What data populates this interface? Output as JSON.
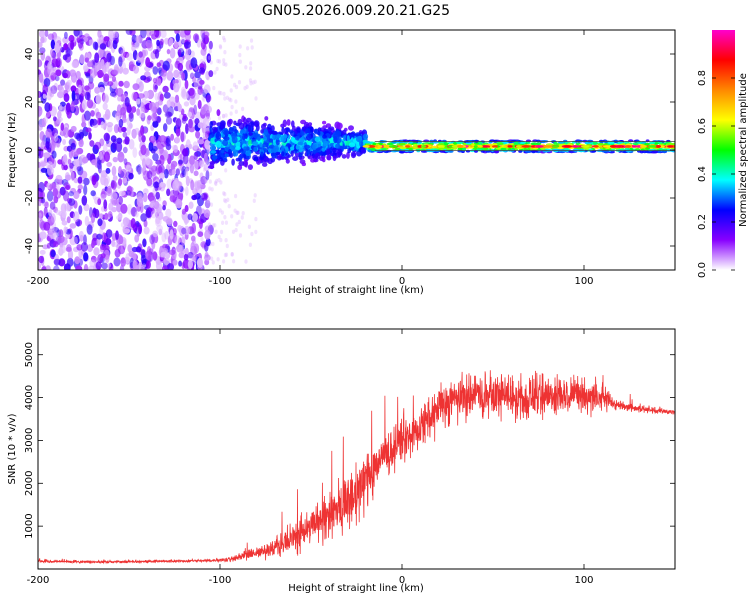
{
  "figure_title": "GN05.2026.009.20.21.G25",
  "colors": {
    "snr_line": "#ee3333",
    "band_line": "#444444",
    "frame": "#000000"
  },
  "chart_data": [
    {
      "type": "heatmap",
      "title": "GN05.2026.009.20.21.G25",
      "xlabel": "Height of straight line (km)",
      "ylabel": "Frequency (Hz)",
      "xlim": [
        -200,
        150
      ],
      "ylim": [
        -50,
        50
      ],
      "xticks": [
        -200,
        -100,
        0,
        100
      ],
      "yticks": [
        -40,
        -20,
        0,
        20,
        40
      ],
      "colorbar": {
        "label": "Normalized spectral amplitude",
        "range": [
          0,
          1
        ],
        "ticks": [
          "0.0",
          "0.2",
          "0.4",
          "0.6",
          "0.8"
        ],
        "colormap": [
          "#ffffff",
          "#8800ff",
          "#0000ff",
          "#00ffff",
          "#00ff00",
          "#ffff00",
          "#ff8800",
          "#ff0000",
          "#ff00cc"
        ]
      },
      "regions": [
        {
          "name": "noise",
          "x_range": [
            -200,
            -105
          ],
          "freq_range": [
            -50,
            50
          ],
          "amplitude": [
            0.0,
            0.2
          ]
        },
        {
          "name": "transition",
          "x_range": [
            -105,
            -20
          ],
          "freq_range": [
            -15,
            15
          ],
          "center_freq": 3,
          "amplitude": [
            0.1,
            0.4
          ]
        },
        {
          "name": "carrier",
          "x_range": [
            -20,
            150
          ],
          "center_freq": 1.5,
          "half_width": 1.5,
          "amplitude": [
            0.5,
            1.0
          ]
        }
      ],
      "band_lines": [
        {
          "x_range": [
            -15,
            150
          ],
          "freq": 3.5
        },
        {
          "x_range": [
            -15,
            150
          ],
          "freq": -0.2
        }
      ]
    },
    {
      "type": "line",
      "xlabel": "Height of straight line (km)",
      "ylabel": "SNR (10 * v/v)",
      "xlim": [
        -200,
        150
      ],
      "ylim": [
        0,
        5600
      ],
      "xticks": [
        -200,
        -100,
        0,
        100
      ],
      "yticks": [
        1000,
        2000,
        3000,
        4000,
        5000
      ],
      "series": [
        {
          "name": "SNR",
          "x": [
            -200,
            -180,
            -160,
            -140,
            -120,
            -105,
            -95,
            -85,
            -75,
            -65,
            -55,
            -45,
            -35,
            -25,
            -20,
            -15,
            -10,
            -5,
            0,
            5,
            10,
            15,
            20,
            25,
            30,
            40,
            50,
            60,
            70,
            80,
            90,
            100,
            110,
            115,
            120,
            130,
            140,
            150
          ],
          "values": [
            180,
            170,
            165,
            175,
            185,
            195,
            230,
            320,
            420,
            600,
            850,
            1150,
            1450,
            1750,
            2100,
            2400,
            2650,
            2800,
            3000,
            3100,
            3300,
            3500,
            3750,
            3900,
            4000,
            4050,
            4100,
            4050,
            4000,
            4050,
            4100,
            4000,
            4050,
            3900,
            3800,
            3750,
            3700,
            3650
          ],
          "noise_amplitude": [
            40,
            40,
            40,
            40,
            40,
            50,
            90,
            150,
            250,
            400,
            550,
            700,
            850,
            950,
            950,
            850,
            700,
            650,
            600,
            650,
            700,
            750,
            750,
            750,
            700,
            700,
            700,
            700,
            700,
            650,
            650,
            600,
            550,
            200,
            150,
            120,
            100,
            80
          ]
        }
      ]
    }
  ]
}
